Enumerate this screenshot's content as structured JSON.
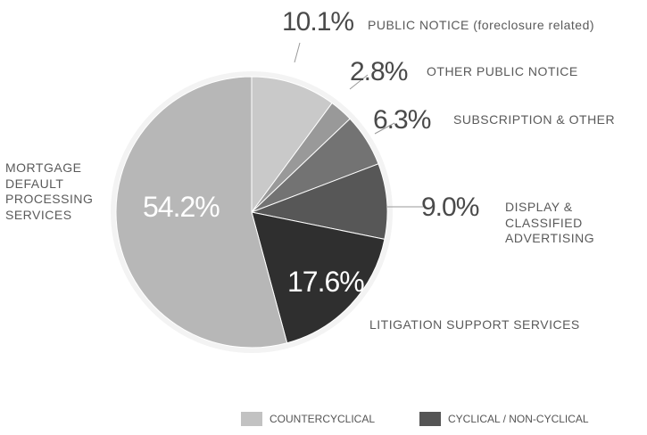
{
  "chart_data": {
    "type": "pie",
    "categories": [
      "PUBLIC NOTICE (foreclosure related)",
      "OTHER PUBLIC NOTICE",
      "SUBSCRIPTION & OTHER",
      "DISPLAY & CLASSIFIED ADVERTISING",
      "LITIGATION SUPPORT SERVICES",
      "MORTGAGE DEFAULT PROCESSING SERVICES"
    ],
    "values": [
      10.1,
      2.8,
      6.3,
      9.0,
      17.6,
      54.2
    ],
    "value_labels": [
      "10.1%",
      "2.8%",
      "6.3%",
      "9.0%",
      "17.6%",
      "54.2%"
    ],
    "colors": [
      "#c9c9c9",
      "#999999",
      "#737373",
      "#575757",
      "#2f2f2f",
      "#b7b7b7"
    ],
    "legend": [
      {
        "label": "COUNTERCYCLICAL",
        "color": "#c2c2c2"
      },
      {
        "label": "CYCLICAL / NON-CYCLICAL",
        "color": "#555555"
      }
    ]
  }
}
